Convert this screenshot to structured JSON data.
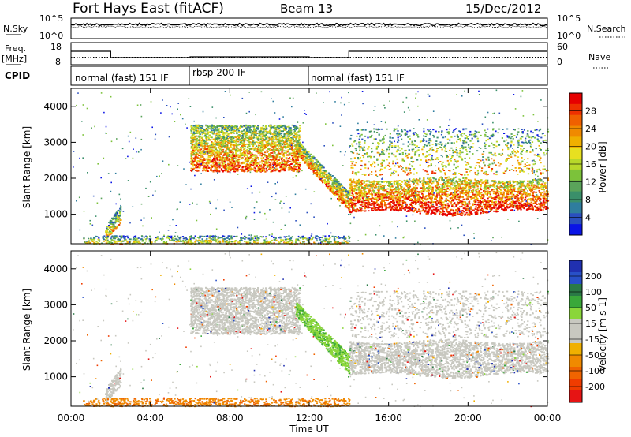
{
  "header": {
    "station": "Fort Hays East (fitACF)",
    "beam": "Beam 13",
    "date": "15/Dec/2012"
  },
  "left_labels": {
    "nsky": "N.Sky",
    "freq": "Freq.",
    "freq_unit": "[MHz]",
    "cpid": "CPID"
  },
  "right_labels": {
    "nsearch": "N.Search",
    "nave": "Nave"
  },
  "chart_data": [
    {
      "type": "line",
      "panel": "noise",
      "yticks_left": [
        "10^5",
        "10^0"
      ],
      "yticks_right": [
        "10^5",
        "10^0"
      ],
      "series": [
        {
          "name": "N.Sky",
          "style": "solid"
        },
        {
          "name": "N.Search",
          "style": "dotted"
        }
      ]
    },
    {
      "type": "line",
      "panel": "frequency_nave",
      "yticks_left": [
        "18",
        "8"
      ],
      "yticks_right": [
        "60",
        "0"
      ],
      "x_hours": [
        0,
        2,
        2,
        6,
        6,
        12,
        12,
        14,
        14,
        24
      ],
      "freq_mhz": [
        14.5,
        14.5,
        10.5,
        10.5,
        11.0,
        11.0,
        10.5,
        10.5,
        14.5,
        14.5
      ],
      "nave_const": 22
    },
    {
      "type": "table",
      "panel": "cpid",
      "segments": [
        {
          "label": "normal (fast) 151 IF",
          "start": 0,
          "end": 6
        },
        {
          "label": "rbsp 200 IF",
          "start": 6,
          "end": 12
        },
        {
          "label": "normal (fast) 151 IF",
          "start": 12,
          "end": 24
        }
      ]
    },
    {
      "type": "heatmap",
      "panel": "power",
      "xlabel": "",
      "ylabel": "Slant Range [km]",
      "xlim": [
        0,
        24
      ],
      "ylim": [
        180,
        4500
      ],
      "yticks": [
        1000,
        2000,
        3000,
        4000
      ],
      "colorbar": {
        "label": "Power [dB]",
        "ticks": [
          28,
          24,
          20,
          16,
          12,
          8,
          4
        ],
        "colors": [
          "#0a14e6",
          "#2a4fbf",
          "#2f7d9e",
          "#3a8f6a",
          "#5aa35a",
          "#7cc23a",
          "#b8d82a",
          "#e8e020",
          "#f0b000",
          "#f08a00",
          "#f06000",
          "#ee3000",
          "#e60000"
        ]
      }
    },
    {
      "type": "heatmap",
      "panel": "velocity",
      "xlabel": "Time UT",
      "ylabel": "Slant Range [km]",
      "xlim": [
        0,
        24
      ],
      "ylim": [
        180,
        4500
      ],
      "yticks": [
        1000,
        2000,
        3000,
        4000
      ],
      "xticks": [
        "00:00",
        "04:00",
        "08:00",
        "12:00",
        "16:00",
        "20:00",
        "00:00"
      ],
      "colorbar": {
        "label": "Velocity [m s-1]",
        "ticks": [
          200,
          100,
          50,
          15,
          -15,
          -50,
          -100,
          -200
        ],
        "colors": [
          "#2030b0",
          "#2850c8",
          "#2a7a46",
          "#3aa83a",
          "#8ad63a",
          "#c8c8c0",
          "#c8c8c0",
          "#f0b000",
          "#f08a00",
          "#f06400",
          "#f03c00",
          "#e61414"
        ]
      }
    }
  ],
  "colors": {
    "frame": "#000000",
    "scatter_grey": "#c8c8c0"
  }
}
